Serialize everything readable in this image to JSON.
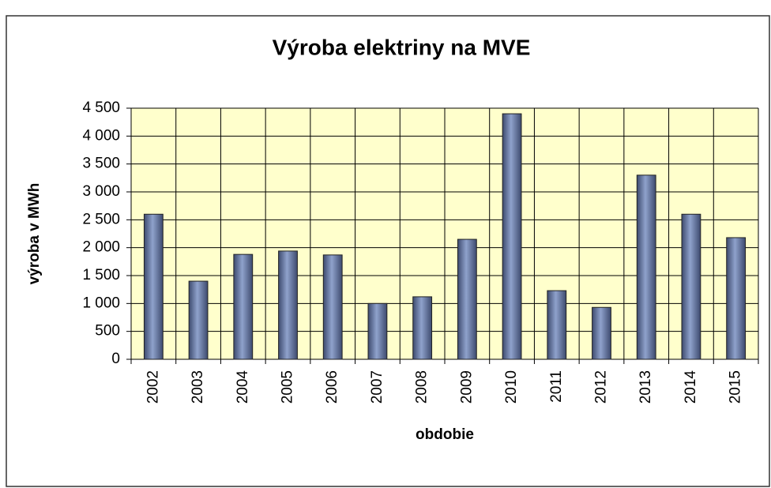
{
  "chart_data": {
    "type": "bar",
    "title": "Výroba elektriny na MVE",
    "x_label": "obdobie",
    "y_label": "výroba v MWh",
    "categories": [
      "2002",
      "2003",
      "2004",
      "2005",
      "2006",
      "2007",
      "2008",
      "2009",
      "2010",
      "2011",
      "2012",
      "2013",
      "2014",
      "2015"
    ],
    "values": [
      2600,
      1400,
      1880,
      1940,
      1870,
      1000,
      1120,
      2150,
      4400,
      1230,
      930,
      3300,
      2600,
      2180
    ],
    "color": "#8fa2cc",
    "ylim": [
      0,
      4500
    ],
    "yticks": [
      0,
      500,
      {
        "value": 1000,
        "label": "1 000"
      },
      {
        "value": 1500,
        "label": "1 500"
      },
      {
        "value": 2000,
        "label": "2 000"
      },
      {
        "value": 2500,
        "label": "2 500"
      },
      {
        "value": 3000,
        "label": "3 000"
      },
      {
        "value": 3500,
        "label": "3 500"
      },
      {
        "value": 4000,
        "label": "4 000"
      },
      {
        "value": 4500,
        "label": "4 500"
      }
    ],
    "grid": true
  }
}
